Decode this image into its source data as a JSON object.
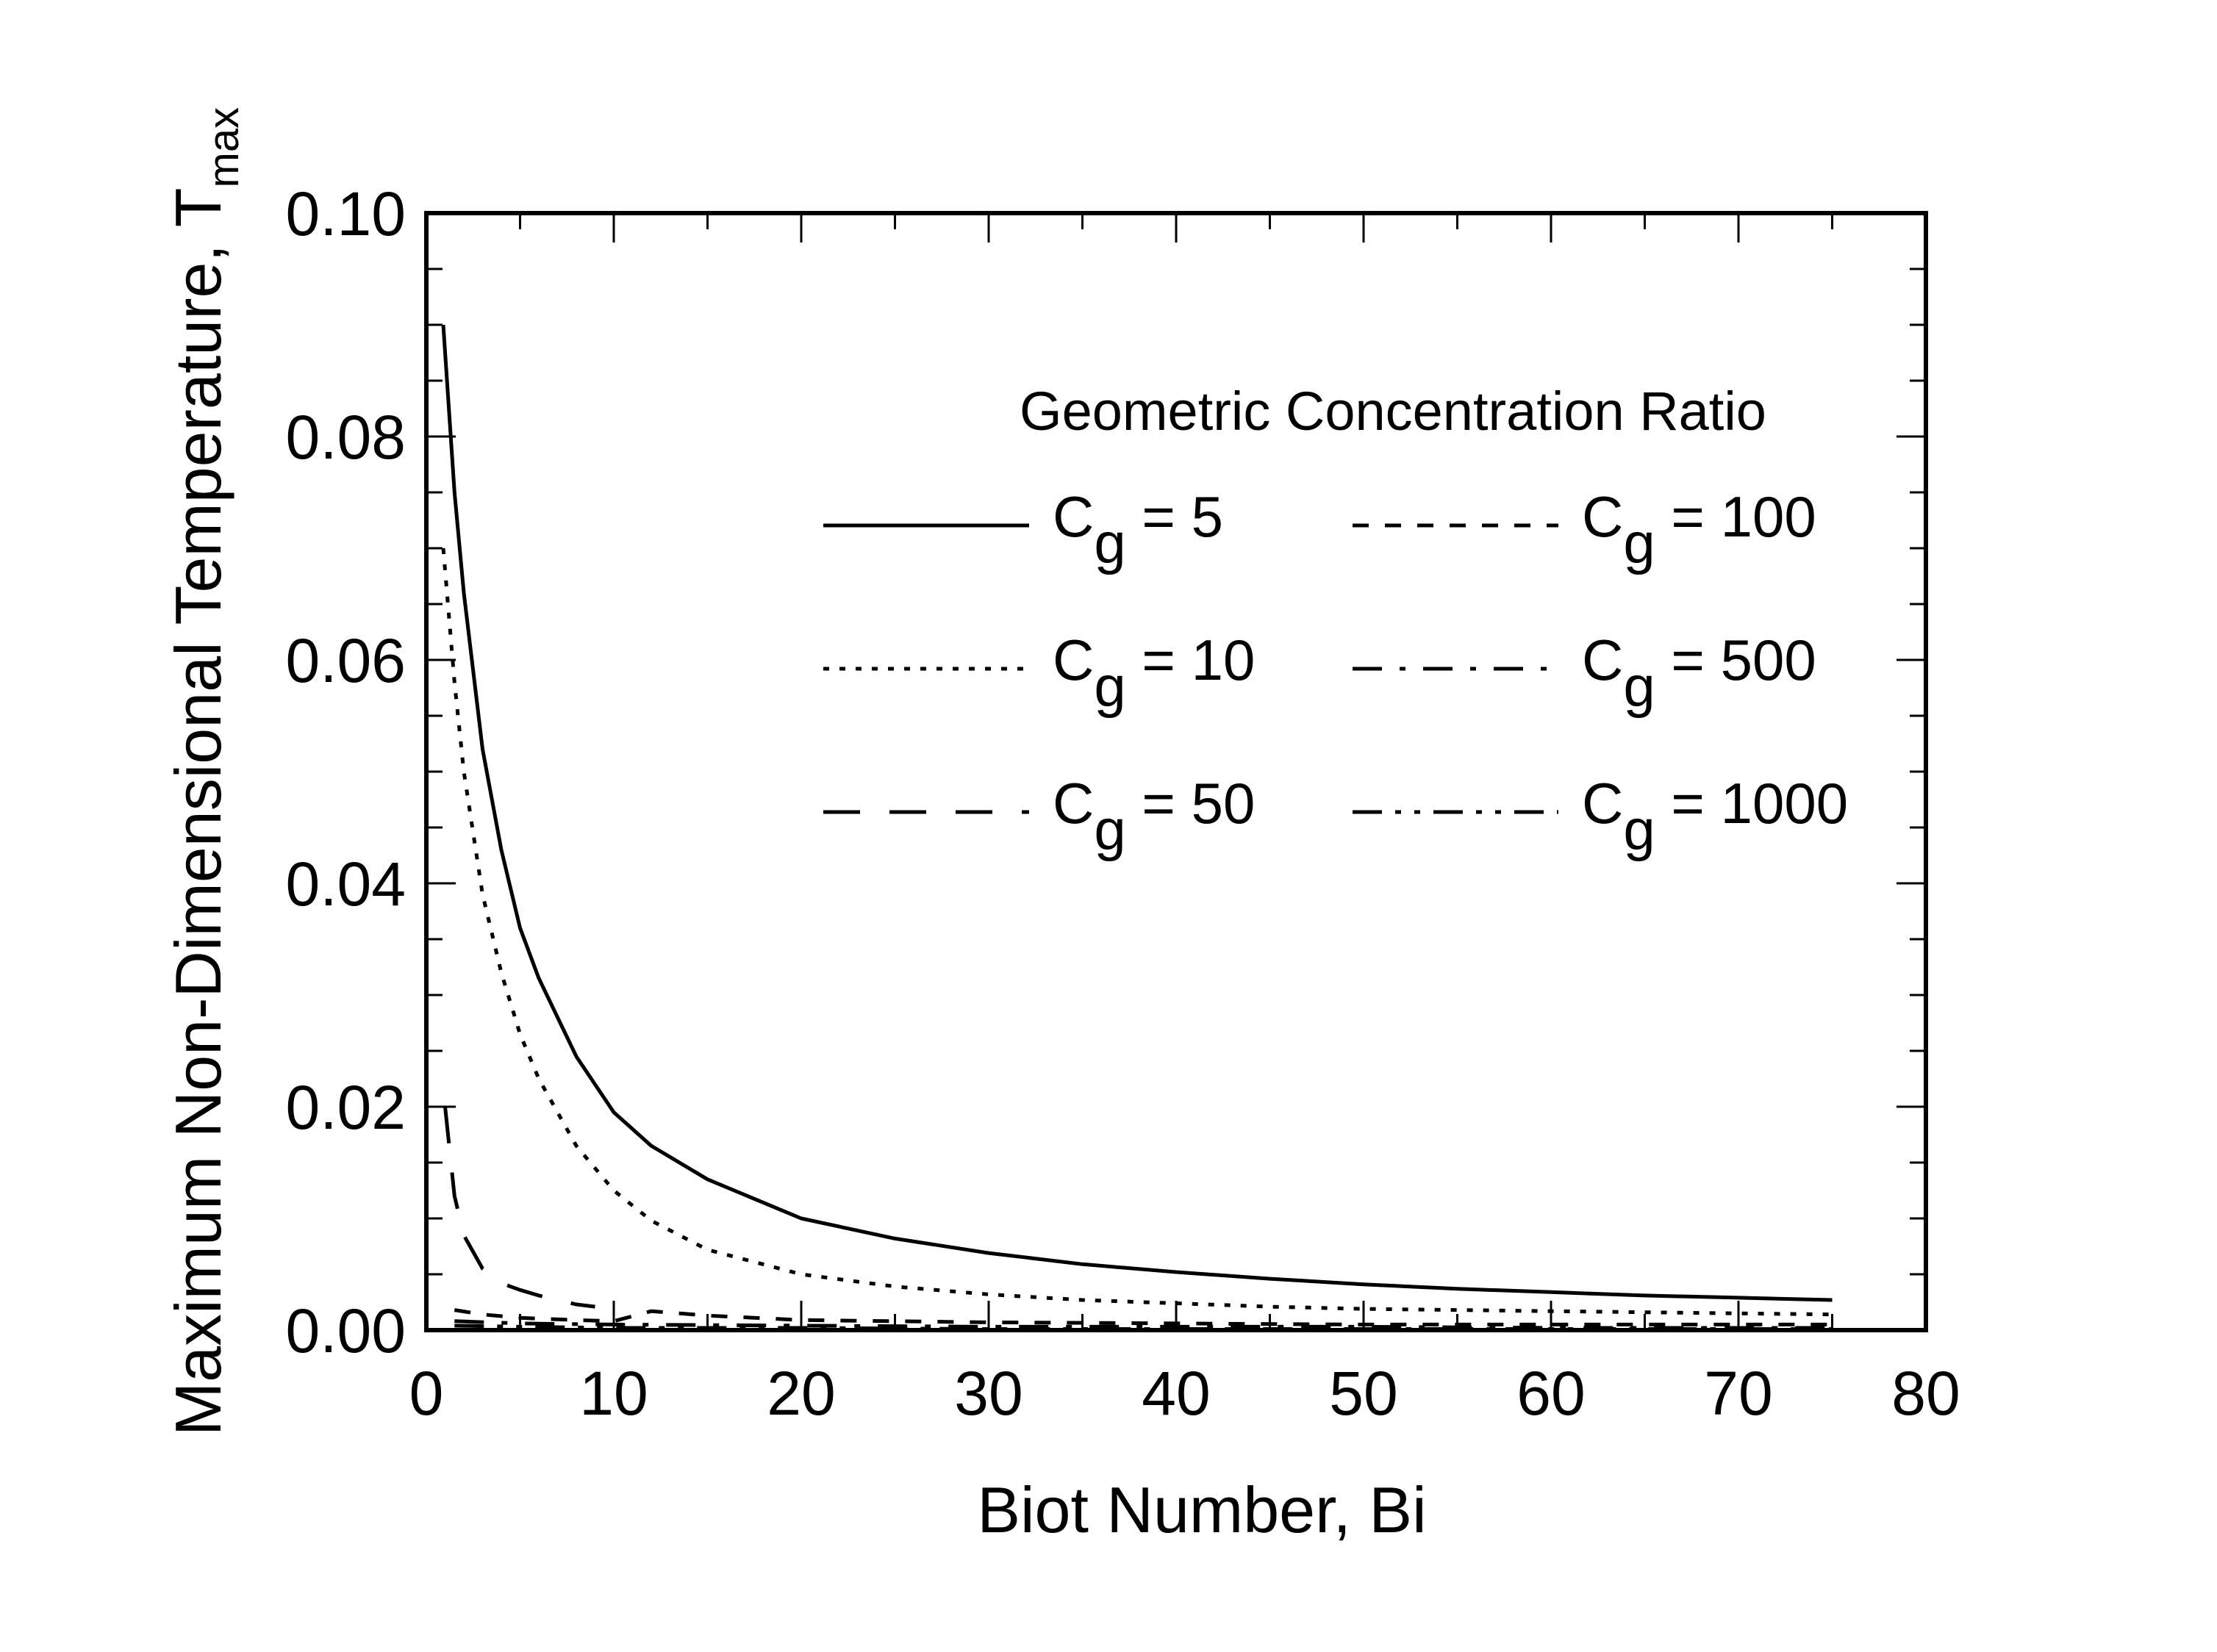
{
  "chart_data": {
    "type": "line",
    "xlabel": "Biot Number, Bi",
    "ylabel": "Maximum Non-Dimensional Temperature, T",
    "ylabel_sub": "max",
    "xlim": [
      0,
      80
    ],
    "ylim": [
      0,
      0.1
    ],
    "x_ticks": [
      0,
      10,
      20,
      30,
      40,
      50,
      60,
      70,
      80
    ],
    "x_tick_labels": [
      "0",
      "10",
      "20",
      "30",
      "40",
      "50",
      "60",
      "70",
      "80"
    ],
    "y_ticks": [
      0,
      0.02,
      0.04,
      0.06,
      0.08,
      0.1
    ],
    "y_tick_labels": [
      "0.00",
      "0.02",
      "0.04",
      "0.06",
      "0.08",
      "0.10"
    ],
    "grid": false,
    "legend_title": "Geometric Concentration Ratio",
    "legend_position": "top-right",
    "series": [
      {
        "name": "Cg = 5",
        "label_main": "C",
        "label_sub": "g",
        "label_rest": " = 5",
        "dash": "solid",
        "x": [
          0.9,
          1.5,
          2,
          3,
          4,
          5,
          6,
          8,
          10,
          12,
          15,
          20,
          25,
          30,
          35,
          40,
          45,
          50,
          55,
          60,
          65,
          70,
          75
        ],
        "y": [
          0.09,
          0.075,
          0.066,
          0.052,
          0.043,
          0.036,
          0.0315,
          0.0245,
          0.0195,
          0.0165,
          0.0135,
          0.01,
          0.0082,
          0.0069,
          0.0059,
          0.0052,
          0.0046,
          0.0041,
          0.0037,
          0.0034,
          0.0031,
          0.0029,
          0.0027
        ]
      },
      {
        "name": "Cg = 10",
        "label_main": "C",
        "label_sub": "g",
        "label_rest": " = 10",
        "dash": "dotted",
        "x": [
          0.9,
          1.5,
          2,
          3,
          4,
          5,
          6,
          8,
          10,
          12,
          15,
          20,
          25,
          30,
          35,
          40,
          45,
          50,
          55,
          60,
          65,
          70,
          75
        ],
        "y": [
          0.07,
          0.058,
          0.05,
          0.039,
          0.032,
          0.0265,
          0.0225,
          0.0165,
          0.0125,
          0.0098,
          0.0072,
          0.005,
          0.0039,
          0.0032,
          0.0027,
          0.0024,
          0.0021,
          0.0019,
          0.0018,
          0.0017,
          0.0016,
          0.0015,
          0.0014
        ]
      },
      {
        "name": "Cg = 50",
        "label_main": "C",
        "label_sub": "g",
        "label_rest": " = 50",
        "dash": "longdash",
        "x": [
          1,
          1.5,
          2,
          3,
          4,
          5,
          6,
          7,
          8,
          9
        ],
        "y": [
          0.02,
          0.012,
          0.0085,
          0.0055,
          0.0042,
          0.0036,
          0.0031,
          0.0027,
          0.0023,
          0.0021
        ]
      },
      {
        "name": "Cg = 100",
        "label_main": "C",
        "label_sub": "g",
        "label_rest": " = 100",
        "dash": "dashed",
        "x": [
          1.5,
          3,
          5,
          8,
          10,
          12,
          15,
          20,
          30,
          40,
          50,
          60,
          70,
          75
        ],
        "y": [
          0.0018,
          0.0014,
          0.0011,
          0.0009,
          0.0008,
          0.0017,
          0.0013,
          0.0009,
          0.0007,
          0.0006,
          0.0005,
          0.0005,
          0.0005,
          0.0005
        ]
      },
      {
        "name": "Cg = 500",
        "label_main": "C",
        "label_sub": "g",
        "label_rest": " = 500",
        "dash": "dashdot",
        "x": [
          1.5,
          5,
          10,
          20,
          30,
          40,
          50,
          60,
          70,
          75
        ],
        "y": [
          0.0008,
          0.0006,
          0.0005,
          0.0004,
          0.0003,
          0.0003,
          0.0003,
          0.0002,
          0.0002,
          0.0002
        ]
      },
      {
        "name": "Cg = 1000",
        "label_main": "C",
        "label_sub": "g",
        "label_rest": " = 1000",
        "dash": "dashdotdot",
        "x": [
          1.5,
          5,
          10,
          20,
          30,
          40,
          50,
          60,
          70,
          75
        ],
        "y": [
          0.0004,
          0.0003,
          0.0002,
          0.0002,
          0.0001,
          0.0001,
          0.0001,
          0.0001,
          0.0001,
          0.0001
        ]
      }
    ]
  }
}
